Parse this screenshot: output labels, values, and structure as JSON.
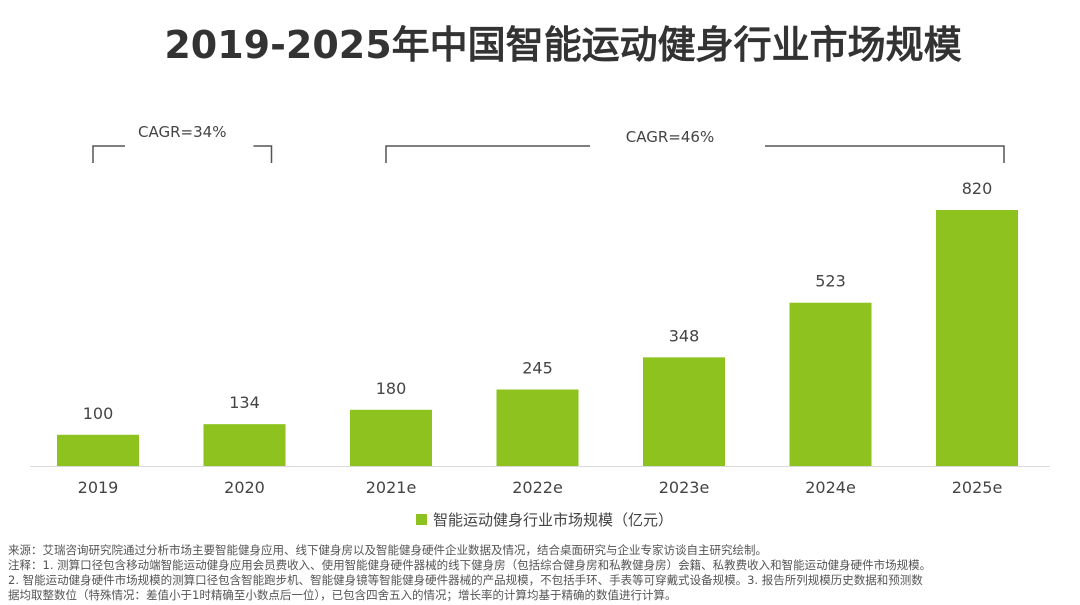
{
  "chart_data": {
    "type": "bar",
    "title": "2019-2025年中国智能运动健身行业市场规模",
    "categories": [
      "2019",
      "2020",
      "2021e",
      "2022e",
      "2023e",
      "2024e",
      "2025e"
    ],
    "series": [
      {
        "name": "智能运动健身行业市场规模（亿元）",
        "values": [
          100,
          134,
          180,
          245,
          348,
          523,
          820
        ]
      }
    ],
    "ylim": [
      0,
      820
    ],
    "grid": false,
    "legend": "bottom",
    "bar_color": "#8dc21f",
    "annotations": [
      {
        "text": "CAGR=34%",
        "from": "2019",
        "to": "2020"
      },
      {
        "text": "CAGR=46%",
        "from": "2021e",
        "to": "2025e"
      }
    ]
  },
  "notes": [
    "来源：艾瑞咨询研究院通过分析市场主要智能健身应用、线下健身房以及智能健身硬件企业数据及情况，结合桌面研究与企业专家访谈自主研究绘制。",
    "注释：1. 测算口径包含移动端智能运动健身应用会员费收入、使用智能健身硬件器械的线下健身房（包括综合健身房和私教健身房）会籍、私教费收入和智能运动健身硬件市场规模。",
    "2. 智能运动健身硬件市场规模的测算口径包含智能跑步机、智能健身镜等智能健身硬件器械的产品规模，不包括手环、手表等可穿戴式设备规模。3. 报告所列规模历史数据和预测数",
    "据均取整数位（特殊情况：差值小于1时精确至小数点后一位），已包含四舍五入的情况；增长率的计算均基于精确的数值进行计算。"
  ]
}
